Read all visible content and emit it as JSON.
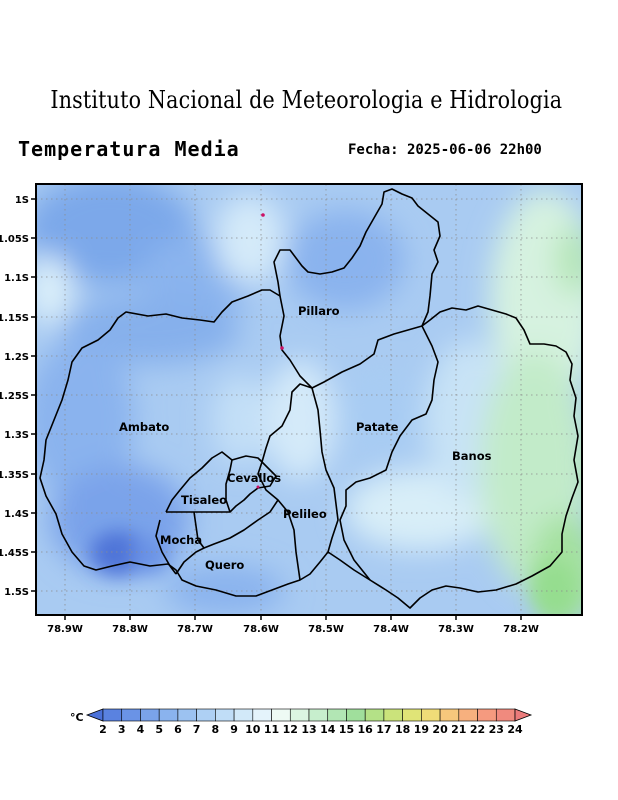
{
  "header": {
    "institution": "Instituto Nacional de Meteorologia e Hidrologia",
    "product": "Temperatura Media",
    "date_label": "Fecha: 2025-06-06 22h00"
  },
  "map": {
    "lat_ticks": [
      "1S",
      "1.05S",
      "1.1S",
      "1.15S",
      "1.2S",
      "1.25S",
      "1.3S",
      "1.35S",
      "1.4S",
      "1.45S",
      "1.5S"
    ],
    "lon_ticks": [
      "78.9W",
      "78.8W",
      "78.7W",
      "78.6W",
      "78.5W",
      "78.4W",
      "78.3W",
      "78.2W"
    ],
    "regions": [
      "Pillaro",
      "Ambato",
      "Patate",
      "Banos",
      "Cevallos",
      "Tisaleo",
      "Pelileo",
      "Mocha",
      "Quero"
    ],
    "grid": true
  },
  "colorbar": {
    "unit": "°C",
    "labels": [
      "2",
      "3",
      "4",
      "5",
      "6",
      "7",
      "8",
      "9",
      "10",
      "11",
      "12",
      "13",
      "14",
      "15",
      "16",
      "17",
      "18",
      "19",
      "20",
      "21",
      "22",
      "23",
      "24"
    ],
    "colors": [
      "#4a70d8",
      "#5a82e0",
      "#6a93e6",
      "#7aa3ea",
      "#8ab3ee",
      "#9cc2f1",
      "#aed0f4",
      "#c0ddf7",
      "#d2e9f9",
      "#e4f3fb",
      "#eefaf4",
      "#dcf5e2",
      "#c7eecd",
      "#b2e6b4",
      "#a0df9c",
      "#b4e187",
      "#cbe37b",
      "#e0e477",
      "#f0dc78",
      "#f6c77c",
      "#f7b07e",
      "#f59a7f",
      "#f08a7e",
      "#eb7b7b"
    ]
  }
}
